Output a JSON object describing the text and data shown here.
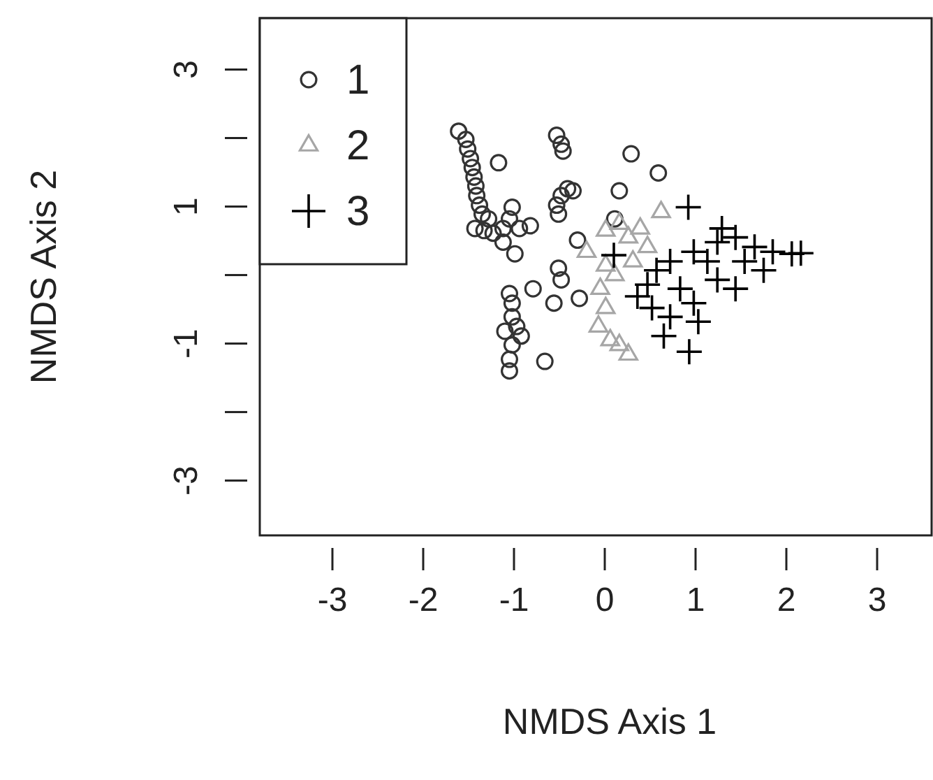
{
  "chart_data": {
    "type": "scatter",
    "xlabel": "NMDS Axis 1",
    "ylabel": "NMDS Axis 2",
    "xlim": [
      -3.8,
      3.6
    ],
    "ylim": [
      -3.8,
      3.75
    ],
    "xticks": [
      -3,
      -2,
      -1,
      0,
      1,
      2,
      3
    ],
    "yticks": [
      {
        "value": -3,
        "label": "-3"
      },
      {
        "value": -2,
        "label": null
      },
      {
        "value": -1,
        "label": "-1"
      },
      {
        "value": 0,
        "label": null
      },
      {
        "value": 1,
        "label": "1"
      },
      {
        "value": 2,
        "label": null
      },
      {
        "value": 3,
        "label": "3"
      }
    ],
    "grid": false,
    "legend": "top left",
    "series": [
      {
        "name": "1",
        "color": "#333333",
        "marker": "circle",
        "x": [
          -1.61,
          -1.53,
          -1.51,
          -1.48,
          -1.46,
          -1.44,
          -1.42,
          -1.41,
          -1.38,
          -1.35,
          -1.43,
          -1.33,
          -1.23,
          -1.12,
          -0.99,
          -1.17,
          -1.02,
          -1.05,
          -0.94,
          -0.82,
          -1.12,
          -1.28,
          -0.53,
          -0.48,
          -0.46,
          -0.41,
          -0.48,
          -0.53,
          -0.51,
          -0.35,
          0.29,
          0.59,
          0.16,
          0.11,
          -0.3,
          -0.51,
          -0.48,
          -0.56,
          -0.79,
          -0.28,
          -1.05,
          -1.02,
          -0.97,
          -0.92,
          -1.02,
          -1.05,
          -1.05,
          -0.66,
          -1.02,
          -1.1
        ],
        "values": [
          2.1,
          1.98,
          1.84,
          1.7,
          1.57,
          1.43,
          1.3,
          1.16,
          1.02,
          0.89,
          0.68,
          0.65,
          0.61,
          0.48,
          0.31,
          1.64,
          0.99,
          0.82,
          0.68,
          0.72,
          0.68,
          0.82,
          2.04,
          1.91,
          1.81,
          1.26,
          1.16,
          1.02,
          0.89,
          1.23,
          1.77,
          1.49,
          1.23,
          0.82,
          0.51,
          0.1,
          -0.07,
          -0.41,
          -0.2,
          -0.34,
          -0.27,
          -0.41,
          -0.75,
          -0.89,
          -1.02,
          -1.23,
          -1.4,
          -1.26,
          -0.61,
          -0.82
        ]
      },
      {
        "name": "2",
        "color": "#a6a6a6",
        "marker": "triangle",
        "x": [
          0.62,
          0.39,
          0.01,
          0.16,
          0.26,
          -0.2,
          0.47,
          0.01,
          0.11,
          -0.05,
          0.01,
          -0.07,
          0.06,
          0.26,
          0.16,
          0.31
        ],
        "values": [
          0.92,
          0.68,
          0.65,
          0.75,
          0.55,
          0.34,
          0.41,
          0.14,
          0.0,
          -0.2,
          -0.48,
          -0.75,
          -0.95,
          -1.16,
          -1.02,
          0.2
        ]
      },
      {
        "name": "3",
        "color": "#000000",
        "marker": "cross",
        "x": [
          0.92,
          0.1,
          0.93,
          0.65,
          0.36,
          0.47,
          0.57,
          0.72,
          0.98,
          1.24,
          1.44,
          1.65,
          1.85,
          2.06,
          2.16,
          1.24,
          0.98,
          0.72,
          1.03,
          1.44,
          1.75,
          1.29,
          1.54,
          0.83,
          0.52,
          1.13
        ],
        "values": [
          0.99,
          0.29,
          -1.12,
          -0.89,
          -0.31,
          -0.14,
          0.07,
          0.2,
          0.34,
          0.48,
          0.55,
          0.41,
          0.34,
          0.31,
          0.32,
          -0.07,
          -0.41,
          -0.61,
          -0.68,
          -0.2,
          0.07,
          0.68,
          0.2,
          -0.2,
          -0.48,
          0.2
        ]
      }
    ]
  }
}
